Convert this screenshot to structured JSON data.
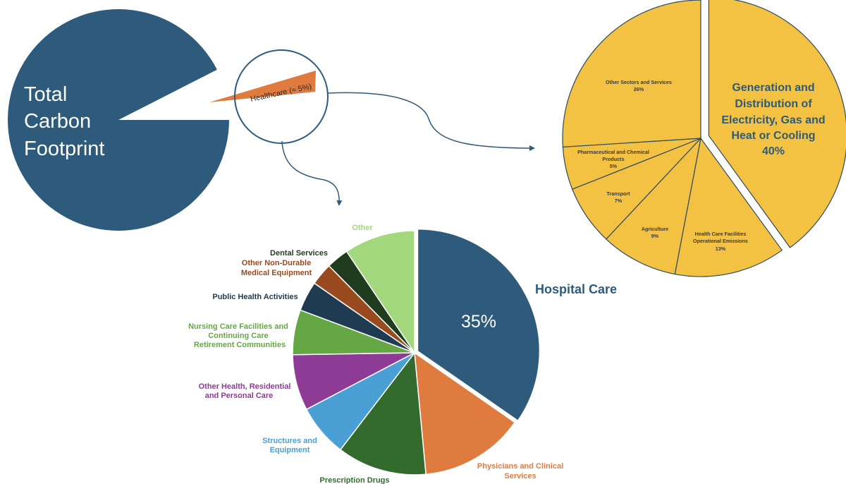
{
  "colors": {
    "total": "#2e5b7b",
    "healthcare": "#e07b3f",
    "sector": "#f4c242",
    "sector_stroke": "#2e4a60",
    "connector": "#2e5b7b"
  },
  "chart_data": [
    {
      "type": "pie",
      "title": "",
      "center_label": [
        "Total",
        "Carbon",
        "Footprint"
      ],
      "slices": [
        {
          "label": "Total Carbon Footprint",
          "value": 95
        },
        {
          "label": "Healthcare (≈ 5%)",
          "value": 5,
          "exploded": true
        }
      ],
      "magnifier_label": "Healthcare (≈ 5%)"
    },
    {
      "type": "pie",
      "title": "",
      "slices": [
        {
          "label": "Generation and Distribution of Electricity, Gas and Heat or Cooling",
          "value": 40,
          "value_label": "40%",
          "exploded": true
        },
        {
          "label": "Health Care Facilities Operational Emissions",
          "value": 13,
          "value_label": "13%"
        },
        {
          "label": "Agriculture",
          "value": 9,
          "value_label": "9%"
        },
        {
          "label": "Transport",
          "value": 7,
          "value_label": "7%"
        },
        {
          "label": "Pharmaceutical and Chemical Products",
          "value": 5,
          "value_label": "5%"
        },
        {
          "label": "Other Sectors and Services",
          "value": 26,
          "value_label": "26%"
        }
      ]
    },
    {
      "type": "pie",
      "title": "",
      "slices": [
        {
          "label": "Hospital Care",
          "value": 35,
          "value_label": "35%",
          "color": "#2e5b7b",
          "exploded": true
        },
        {
          "label": "Physicians and Clinical Services",
          "value": 14,
          "color": "#e07b3f"
        },
        {
          "label": "Prescription Drugs",
          "value": 12,
          "color": "#336b2f"
        },
        {
          "label": "Structures and Equipment",
          "value": 7,
          "color": "#4a9fd4"
        },
        {
          "label": "Other Health, Residential and Personal Care",
          "value": 7.5,
          "color": "#8e3b96"
        },
        {
          "label": "Nursing Care Facilities and Continuing Care Retirement Communities",
          "value": 6,
          "color": "#66a745"
        },
        {
          "label": "Public Health Activities",
          "value": 4,
          "color": "#1f3b52"
        },
        {
          "label": "Other Non-Durable Medical Equipment",
          "value": 3,
          "color": "#9a4a1f"
        },
        {
          "label": "Dental Services",
          "value": 3,
          "color": "#1f3d1e"
        },
        {
          "label": "Other",
          "value": 9.5,
          "color": "#a3d77d"
        }
      ]
    }
  ]
}
